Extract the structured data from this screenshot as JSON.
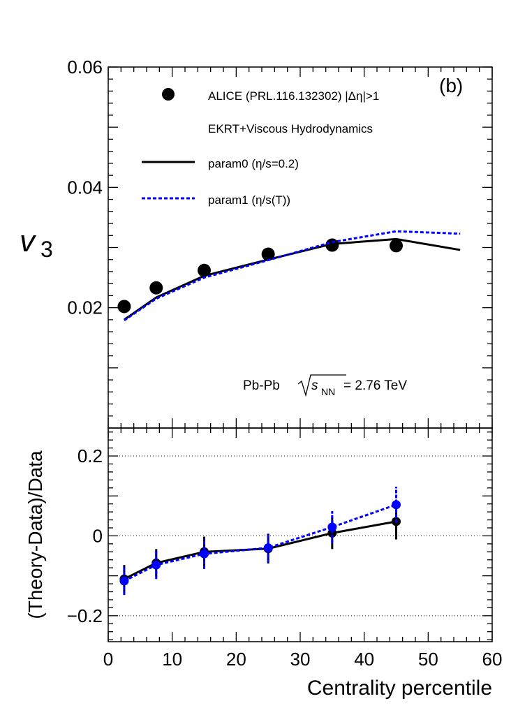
{
  "chart_data": [
    {
      "type": "scatter",
      "panel": "top",
      "panel_label": "(b)",
      "ylabel": "v",
      "ylabel_sub": "3",
      "ylim": [
        0,
        0.06
      ],
      "xlim": [
        0,
        60
      ],
      "yticks": [
        0.02,
        0.04,
        0.06
      ],
      "ytick_labels": [
        "0.02",
        "0.04",
        "0.06"
      ],
      "energy_text": {
        "prefix": "Pb-Pb ",
        "s": "s",
        "sub": "NN",
        "suffix": " = 2.76 TeV"
      },
      "legend": {
        "data_label": "ALICE (PRL.116.132302) |Δη|>1",
        "header": "EKRT+Viscous Hydrodynamics",
        "param0_label": "param0 (η/s=0.2)",
        "param1_label": "param1 (η/s(T))"
      },
      "series": [
        {
          "name": "ALICE data",
          "style": "markers",
          "color": "#000000",
          "x": [
            2.5,
            7.5,
            15,
            25,
            35,
            45
          ],
          "y": [
            0.0202,
            0.0233,
            0.0262,
            0.0289,
            0.0304,
            0.0303
          ]
        },
        {
          "name": "param0",
          "style": "solid",
          "color": "#000000",
          "x": [
            2.5,
            7.5,
            15,
            25,
            35,
            45,
            55
          ],
          "y": [
            0.018,
            0.0217,
            0.0253,
            0.028,
            0.0306,
            0.0314,
            0.0296
          ]
        },
        {
          "name": "param1",
          "style": "dashed",
          "color": "#0000ff",
          "x": [
            2.5,
            7.5,
            15,
            25,
            35,
            45,
            55
          ],
          "y": [
            0.0179,
            0.0215,
            0.025,
            0.0279,
            0.0309,
            0.0327,
            0.0323
          ]
        }
      ]
    },
    {
      "type": "line",
      "panel": "bottom",
      "ylabel": "(Theory-Data)/Data",
      "xlabel": "Centrality percentile",
      "ylim": [
        -0.265,
        0.27
      ],
      "xlim": [
        0,
        60
      ],
      "yticks": [
        -0.2,
        0,
        0.2
      ],
      "ytick_labels": [
        "−0.2",
        "0",
        "0.2"
      ],
      "xticks": [
        0,
        10,
        20,
        30,
        40,
        50,
        60
      ],
      "xtick_labels": [
        "0",
        "10",
        "20",
        "30",
        "40",
        "50",
        "60"
      ],
      "series": [
        {
          "name": "param0",
          "style": "solid",
          "color": "#000000",
          "x": [
            2.5,
            7.5,
            15,
            25,
            35,
            45
          ],
          "y": [
            -0.108,
            -0.068,
            -0.04,
            -0.032,
            0.007,
            0.036
          ],
          "err": [
            0.035,
            0.035,
            0.038,
            0.037,
            0.04,
            0.045
          ]
        },
        {
          "name": "param1",
          "style": "dashed",
          "color": "#0000ff",
          "x": [
            2.5,
            7.5,
            15,
            25,
            35,
            45
          ],
          "y": [
            -0.113,
            -0.073,
            -0.045,
            -0.03,
            0.022,
            0.078
          ],
          "err": [
            0.035,
            0.035,
            0.038,
            0.037,
            0.04,
            0.045
          ]
        }
      ]
    }
  ]
}
